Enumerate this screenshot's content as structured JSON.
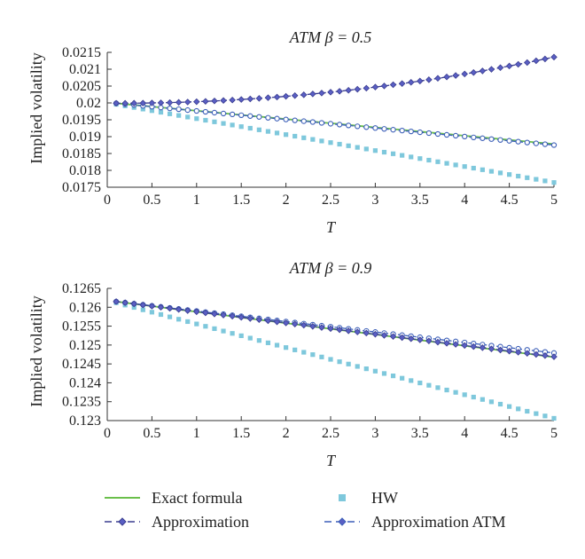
{
  "chart_data": [
    {
      "type": "line",
      "title": "ATM β = 0.5",
      "xlabel": "T",
      "ylabel": "Implied volatility",
      "xlim": [
        0,
        5
      ],
      "ylim": [
        0.0175,
        0.0215
      ],
      "x_ticks": [
        "0",
        "0.5",
        "1",
        "1.5",
        "2",
        "2.5",
        "3",
        "3.5",
        "4",
        "4.5",
        "5"
      ],
      "y_ticks": [
        "0.0175",
        "0.018",
        "0.0185",
        "0.019",
        "0.0195",
        "0.02",
        "0.0205",
        "0.021",
        "0.0215"
      ],
      "grid": false,
      "series": [
        {
          "name": "Exact formula",
          "x_start": 0.1,
          "x_end": 5.0,
          "y_start": 0.01999,
          "y_end": 0.01878
        },
        {
          "name": "HW",
          "x_start": 0.1,
          "x_end": 5.0,
          "y_start": 0.01996,
          "y_end": 0.01764
        },
        {
          "name": "Approximation",
          "x_start": 0.1,
          "x_end": 5.0,
          "y_start": 0.01999,
          "y_end": 0.02136,
          "curvature": 2.0
        },
        {
          "name": "Approximation ATM",
          "x_start": 0.1,
          "x_end": 5.0,
          "y_start": 0.01999,
          "y_end": 0.01875
        }
      ]
    },
    {
      "type": "line",
      "title": "ATM β = 0.9",
      "xlabel": "T",
      "ylabel": "Implied volatility",
      "xlim": [
        0,
        5
      ],
      "ylim": [
        0.123,
        0.1265
      ],
      "x_ticks": [
        "0",
        "0.5",
        "1",
        "1.5",
        "2",
        "2.5",
        "3",
        "3.5",
        "4",
        "4.5",
        "5"
      ],
      "y_ticks": [
        "0.123",
        "0.1235",
        "0.124",
        "0.1245",
        "0.125",
        "0.1255",
        "0.126",
        "0.1265"
      ],
      "grid": false,
      "series": [
        {
          "name": "Exact formula",
          "x_start": 0.1,
          "x_end": 5.0,
          "y_start": 0.12615,
          "y_end": 0.12468
        },
        {
          "name": "HW",
          "x_start": 0.1,
          "x_end": 5.0,
          "y_start": 0.12612,
          "y_end": 0.12306
        },
        {
          "name": "Approximation",
          "x_start": 0.1,
          "x_end": 5.0,
          "y_start": 0.12615,
          "y_end": 0.12469
        },
        {
          "name": "Approximation ATM",
          "x_start": 0.1,
          "x_end": 5.0,
          "y_start": 0.12615,
          "y_end": 0.12479
        }
      ]
    }
  ],
  "legend": {
    "placement": "bottom",
    "items": [
      {
        "label": "Exact formula",
        "style": "solid-line"
      },
      {
        "label": "HW",
        "style": "square-marker"
      },
      {
        "label": "Approximation",
        "style": "dashed-diamond"
      },
      {
        "label": "Approximation ATM",
        "style": "dashed-diamond"
      }
    ]
  },
  "colors": {
    "exact": "#6abf4b",
    "hw": "#7ec8dc",
    "approx": "#3a3d8f",
    "approx_atm": "#3c5fb8",
    "marker_fill_approx": "#5a5fc4",
    "marker_fill_atm": "#ffffff"
  }
}
